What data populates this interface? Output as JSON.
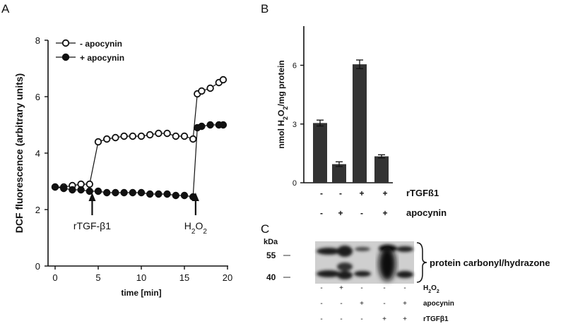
{
  "panels": {
    "a": "A",
    "b": "B",
    "c": "C"
  },
  "chart_data": [
    {
      "type": "line",
      "panel": "A",
      "xlabel": "time [min]",
      "ylabel": "DCF fluorescence (arbitrary units)",
      "xlim": [
        0,
        20
      ],
      "ylim": [
        0,
        8
      ],
      "x_ticks": [
        "0",
        "5",
        "10",
        "15",
        "20"
      ],
      "y_ticks": [
        "0",
        "2",
        "4",
        "6",
        "8"
      ],
      "legend_position": "top-left",
      "series": [
        {
          "name": "- apocynin",
          "marker": "open-circle",
          "x": [
            0,
            1,
            2,
            3,
            4,
            5,
            6,
            7,
            8,
            9,
            10,
            11,
            12,
            13,
            14,
            15,
            16,
            16.5,
            17,
            18,
            19,
            19.5
          ],
          "y": [
            2.8,
            2.8,
            2.85,
            2.9,
            2.9,
            4.4,
            4.5,
            4.55,
            4.6,
            4.6,
            4.6,
            4.65,
            4.7,
            4.7,
            4.6,
            4.6,
            4.5,
            6.1,
            6.2,
            6.3,
            6.5,
            6.6
          ]
        },
        {
          "name": "+ apocynin",
          "marker": "filled-circle",
          "x": [
            0,
            1,
            2,
            3,
            4,
            5,
            6,
            7,
            8,
            9,
            10,
            11,
            12,
            13,
            14,
            15,
            16,
            16.5,
            17,
            18,
            19,
            19.5
          ],
          "y": [
            2.8,
            2.75,
            2.7,
            2.7,
            2.65,
            2.65,
            2.6,
            2.6,
            2.6,
            2.6,
            2.6,
            2.55,
            2.55,
            2.55,
            2.5,
            2.5,
            2.45,
            4.9,
            4.95,
            5.0,
            5.0,
            5.0
          ]
        }
      ],
      "annotations": [
        {
          "text": "rTGF-β1",
          "x": 4.3
        },
        {
          "text": "H2O2",
          "x": 16.3
        }
      ]
    },
    {
      "type": "bar",
      "panel": "B",
      "ylabel": "nmol H2O2/mg protein",
      "ylim": [
        0,
        8
      ],
      "y_ticks": [
        "0",
        "3",
        "6"
      ],
      "values": [
        3.05,
        0.95,
        6.05,
        1.35
      ],
      "errors": [
        0.15,
        0.12,
        0.22,
        0.08
      ],
      "color": "#333333",
      "condition_rows": [
        {
          "label": "rTGFß1",
          "signs": [
            "-",
            "-",
            "+",
            "+"
          ]
        },
        {
          "label": "apocynin",
          "signs": [
            "-",
            "+",
            "-",
            "+"
          ]
        }
      ]
    }
  ],
  "blot": {
    "panel": "C",
    "unit_label": "kDa",
    "markers": [
      "55",
      "40"
    ],
    "band_label": "protein carbonyl/hydrazone",
    "condition_rows": [
      {
        "label": "H2O2",
        "signs": [
          "-",
          "+",
          "-",
          "-",
          "-"
        ]
      },
      {
        "label": "apocynin",
        "signs": [
          "-",
          "-",
          "+",
          "-",
          "+"
        ]
      },
      {
        "label": "rTGFβ1",
        "signs": [
          "-",
          "-",
          "-",
          "+",
          "+"
        ]
      }
    ]
  }
}
